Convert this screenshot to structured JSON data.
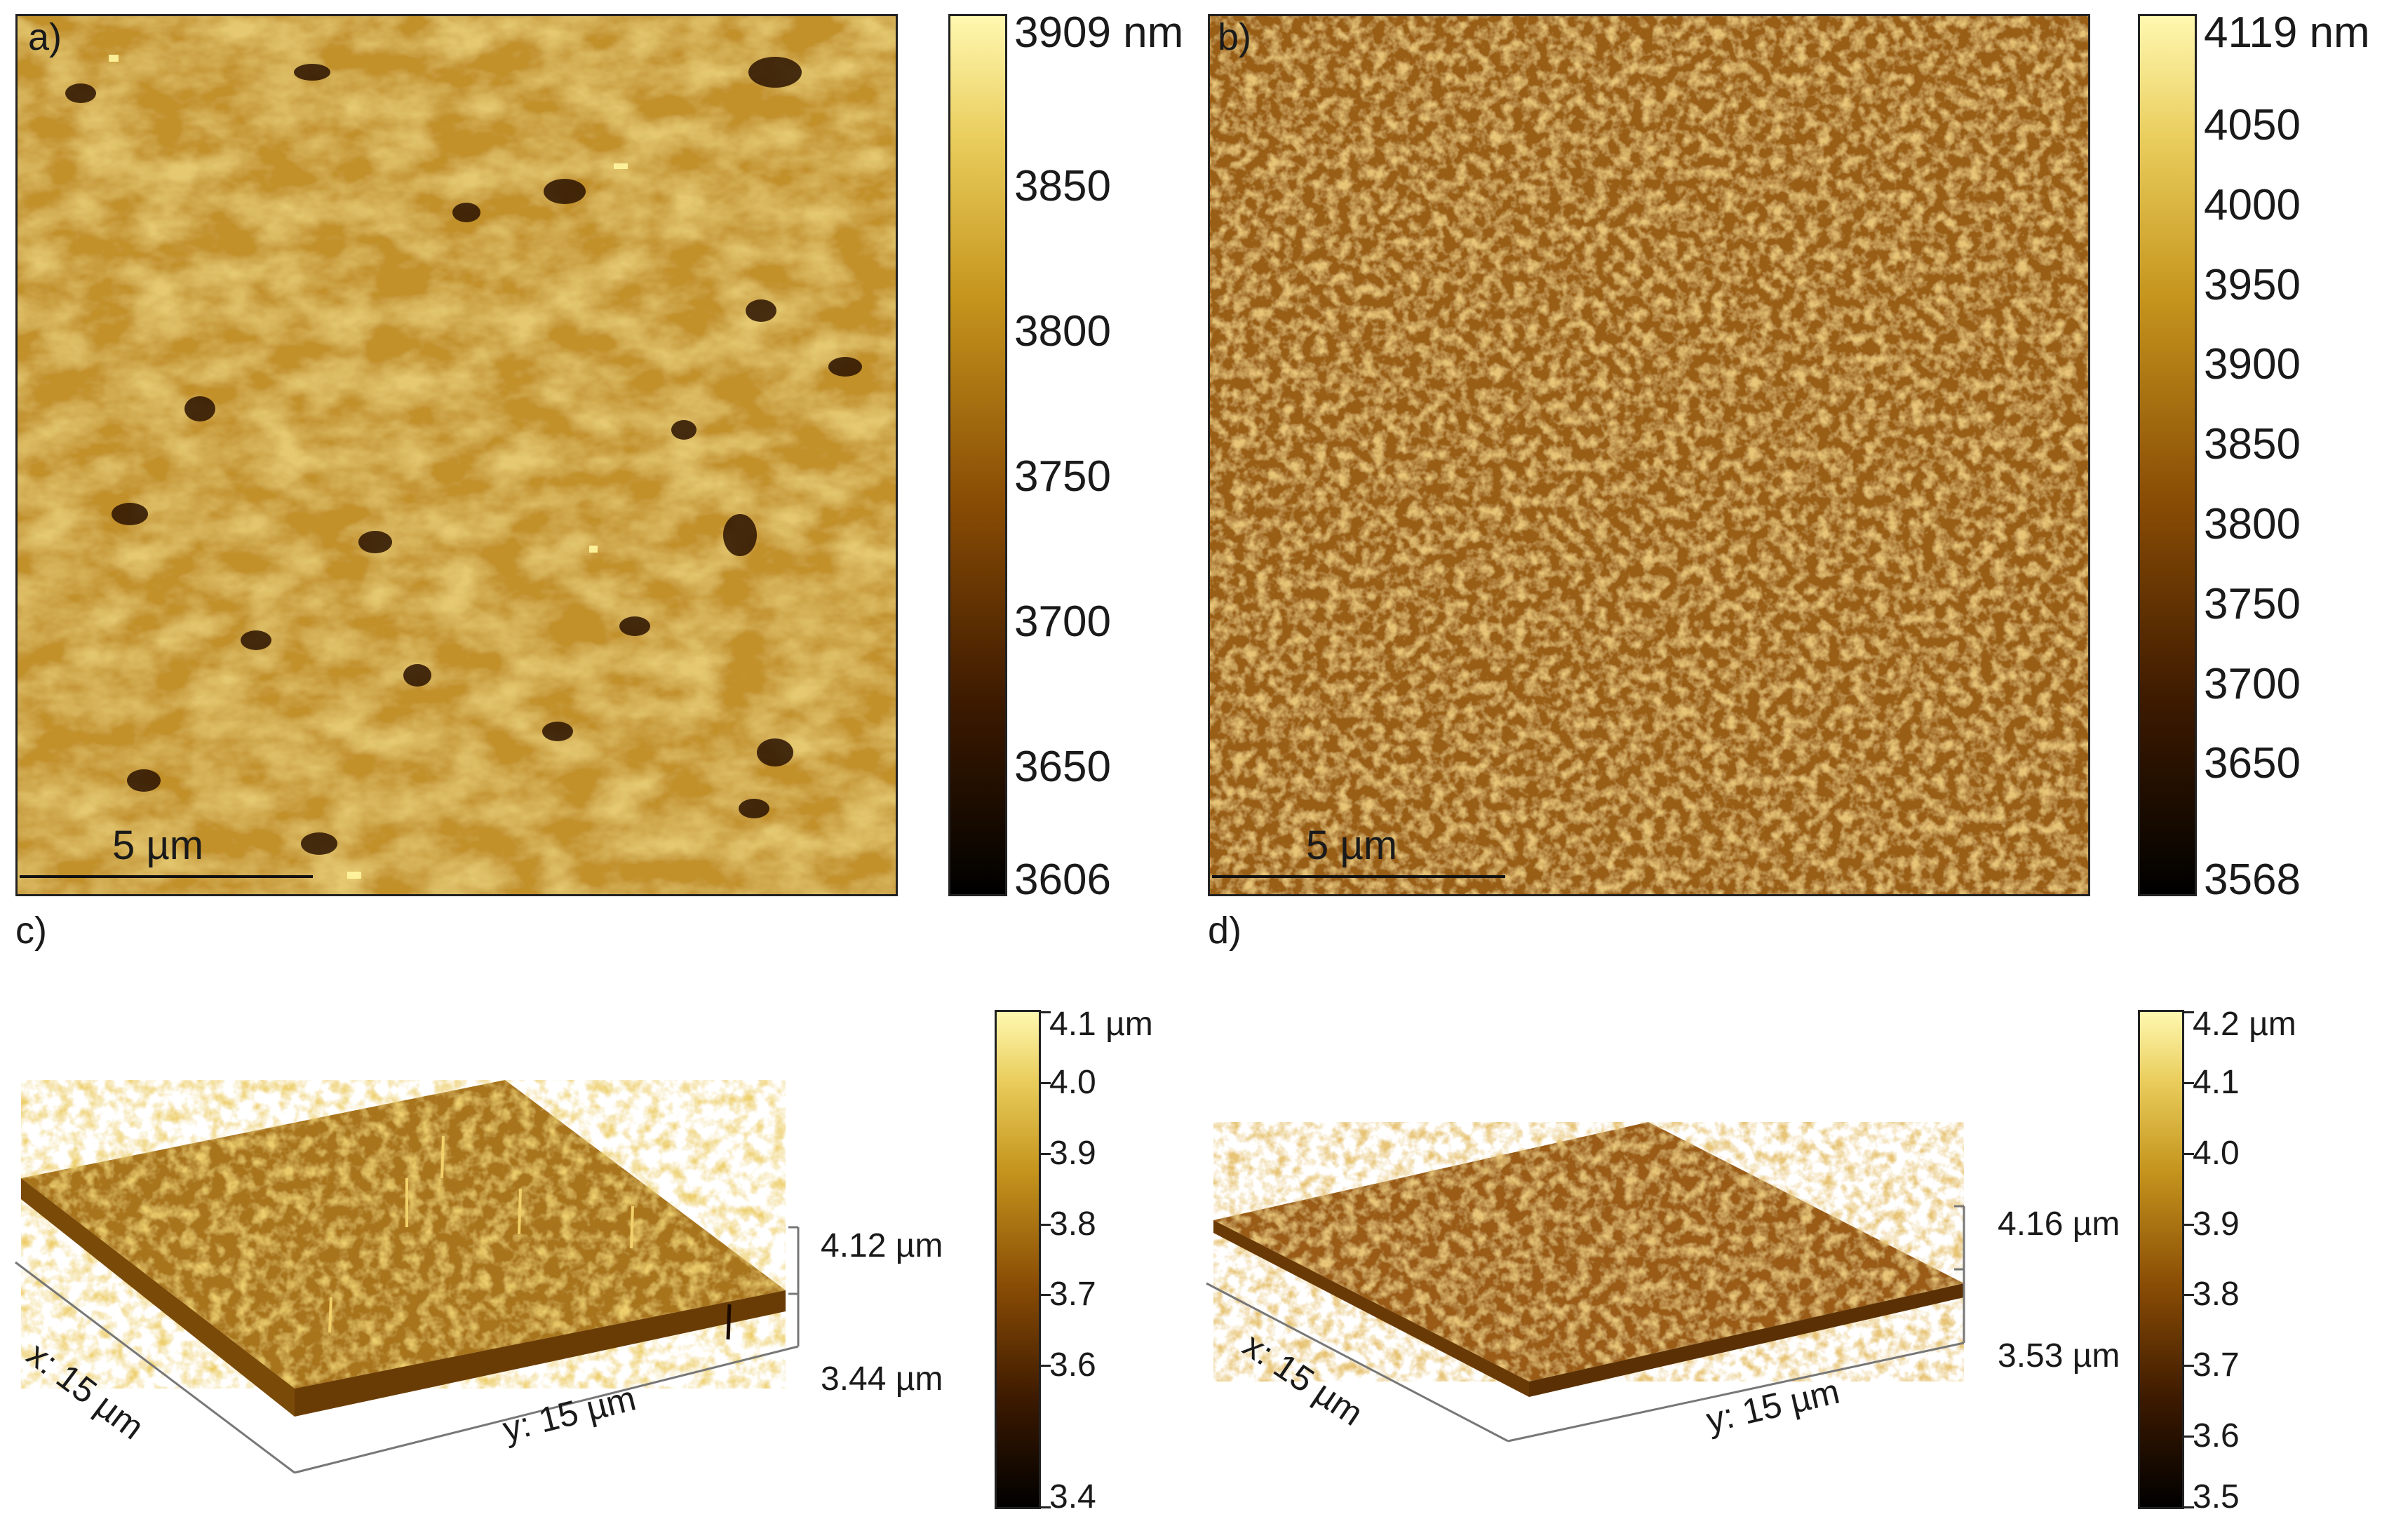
{
  "panels": {
    "a": {
      "label": "a)",
      "scale_bar": "5 µm",
      "colorbar": {
        "ticks": [
          "3909 nm",
          "3850",
          "3800",
          "3750",
          "3700",
          "3650",
          "3606"
        ],
        "min": 3606,
        "max": 3909
      }
    },
    "b": {
      "label": "b)",
      "scale_bar": "5 µm",
      "colorbar": {
        "ticks": [
          "4119 nm",
          "4050",
          "4000",
          "3950",
          "3900",
          "3850",
          "3800",
          "3750",
          "3700",
          "3650",
          "3568"
        ],
        "min": 3568,
        "max": 4119
      }
    },
    "c": {
      "label": "c)",
      "x_axis": "x: 15 µm",
      "y_axis": "y: 15 µm",
      "z_top": "4.12 µm",
      "z_bottom": "3.44 µm",
      "colorbar": {
        "ticks": [
          "4.1 µm",
          "4.0",
          "3.9",
          "3.8",
          "3.7",
          "3.6",
          "3.4"
        ],
        "min": 3.4,
        "max": 4.1
      }
    },
    "d": {
      "label": "d)",
      "x_axis": "x: 15 µm",
      "y_axis": "y: 15 µm",
      "z_top": "4.16 µm",
      "z_bottom": "3.53 µm",
      "colorbar": {
        "ticks": [
          "4.2 µm",
          "4.1",
          "4.0",
          "3.9",
          "3.8",
          "3.7",
          "3.6",
          "3.5"
        ],
        "min": 3.5,
        "max": 4.2
      }
    }
  },
  "colors": {
    "colormap_low": "#000000",
    "colormap_mid_dark": "#5a2a00",
    "colormap_mid": "#b07a10",
    "colormap_high": "#fff7a8"
  }
}
